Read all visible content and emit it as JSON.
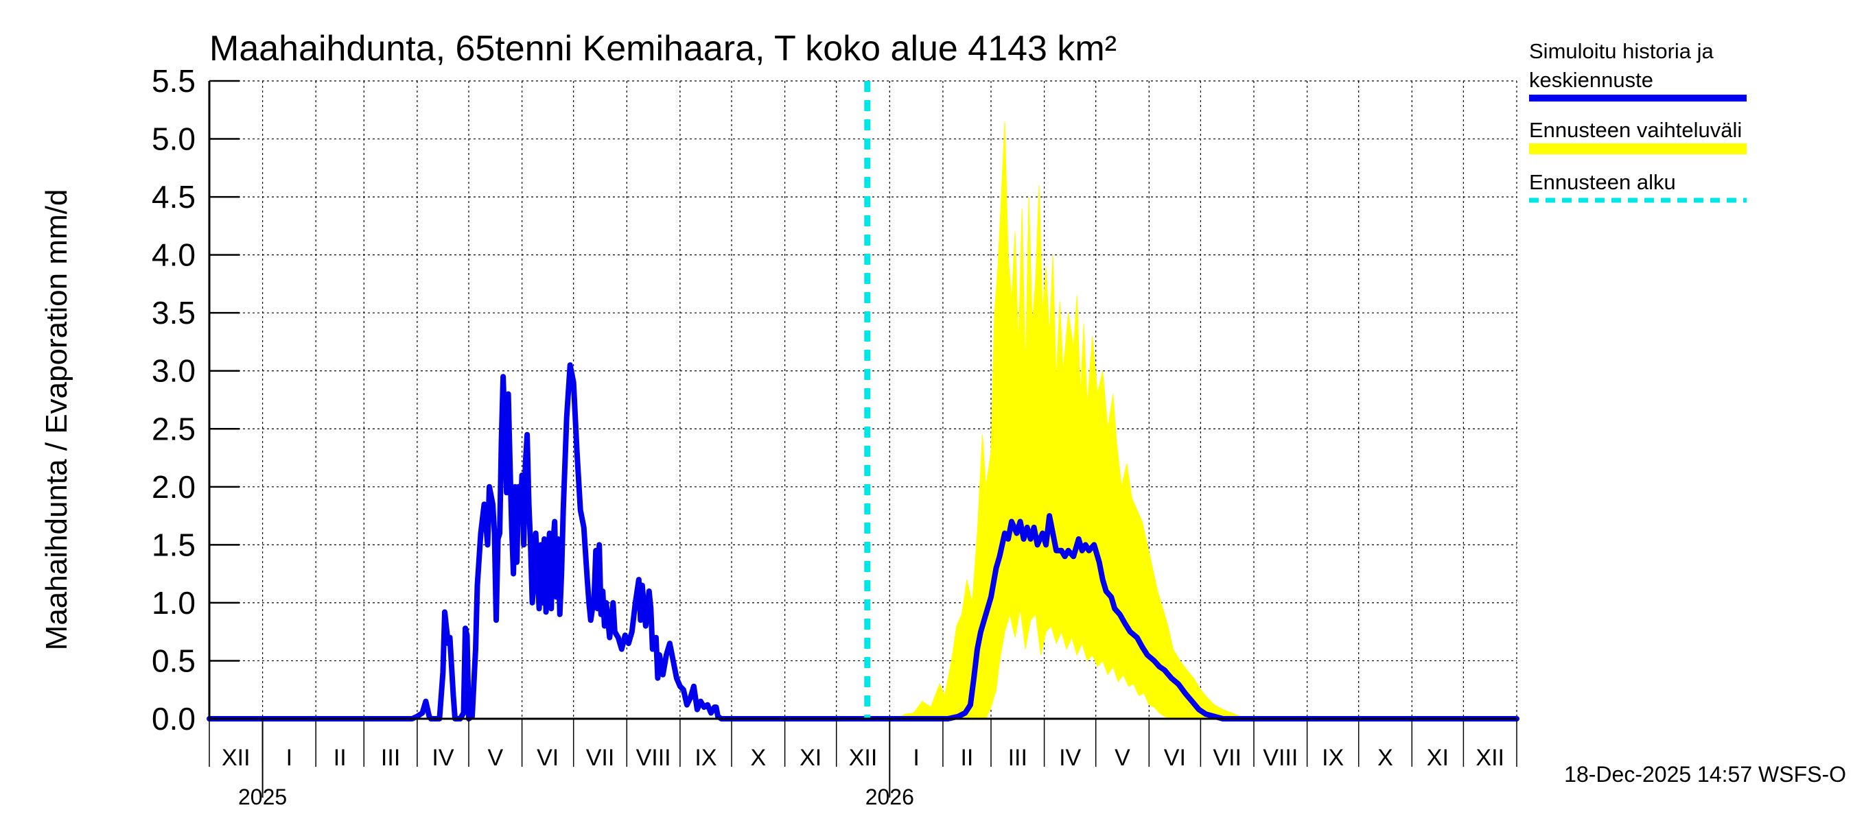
{
  "chart_data": {
    "type": "line",
    "title": "Maahaihdunta, 65tenni Kemihaara, T koko alue 4143 km²",
    "ylabel": "Maahaihdunta / Evaporation   mm/d",
    "xlabel": "",
    "ylim": [
      0,
      5.5
    ],
    "yticks": [
      "0.0",
      "0.5",
      "1.0",
      "1.5",
      "2.0",
      "2.5",
      "3.0",
      "3.5",
      "4.0",
      "4.5",
      "5.0",
      "5.5"
    ],
    "grid": true,
    "x_unit": "days since 2024-12-01",
    "xlim": [
      0,
      761
    ],
    "month_ticks": [
      0,
      31,
      62,
      90,
      121,
      151,
      182,
      212,
      243,
      274,
      304,
      335,
      365,
      396,
      427,
      455,
      486,
      516,
      547,
      577,
      608,
      639,
      669,
      700,
      730,
      761
    ],
    "month_labels": [
      "XII",
      "I",
      "II",
      "III",
      "IV",
      "V",
      "VI",
      "VII",
      "VIII",
      "IX",
      "X",
      "XI",
      "XII",
      "I",
      "II",
      "III",
      "IV",
      "V",
      "VI",
      "VII",
      "VIII",
      "IX",
      "X",
      "XI",
      "XII"
    ],
    "years": [
      {
        "label": "2025",
        "x": 31
      },
      {
        "label": "2026",
        "x": 396
      }
    ],
    "forecast_start_x": 383,
    "legend": {
      "placement": "right",
      "entries": [
        {
          "label_line1": "Simuloitu historia ja",
          "label_line2": "keskiennuste",
          "style": "solid",
          "color": "#0000ee"
        },
        {
          "label_line1": "Ennusteen vaihteluväli",
          "label_line2": "",
          "style": "band",
          "color": "#ffff00"
        },
        {
          "label_line1": "Ennusteen alku",
          "label_line2": "",
          "style": "dashed",
          "color": "#00e5e5"
        }
      ]
    },
    "series": [
      {
        "name": "Simuloitu historia ja keskiennuste",
        "color": "#0000ee",
        "points": [
          [
            0,
            0
          ],
          [
            118,
            0
          ],
          [
            121,
            0.02
          ],
          [
            124,
            0.05
          ],
          [
            126,
            0.15
          ],
          [
            128,
            0.02
          ],
          [
            129,
            0
          ],
          [
            134,
            0
          ],
          [
            136,
            0.4
          ],
          [
            137,
            0.92
          ],
          [
            139,
            0.65
          ],
          [
            140,
            0.7
          ],
          [
            142,
            0.2
          ],
          [
            143,
            0
          ],
          [
            146,
            0
          ],
          [
            148,
            0.05
          ],
          [
            149,
            0.78
          ],
          [
            150,
            0.72
          ],
          [
            151,
            0
          ],
          [
            153,
            0.02
          ],
          [
            155,
            0.6
          ],
          [
            156,
            1.15
          ],
          [
            158,
            1.6
          ],
          [
            160,
            1.85
          ],
          [
            162,
            1.5
          ],
          [
            163,
            2.0
          ],
          [
            165,
            1.85
          ],
          [
            166,
            1.6
          ],
          [
            167,
            0.85
          ],
          [
            168,
            1.55
          ],
          [
            169,
            1.6
          ],
          [
            170,
            2.4
          ],
          [
            171,
            2.95
          ],
          [
            172,
            2.5
          ],
          [
            173,
            1.95
          ],
          [
            174,
            2.8
          ],
          [
            175,
            2.2
          ],
          [
            176,
            1.65
          ],
          [
            177,
            1.25
          ],
          [
            178,
            2.0
          ],
          [
            179,
            1.35
          ],
          [
            180,
            2.0
          ],
          [
            181,
            1.7
          ],
          [
            182,
            2.1
          ],
          [
            183,
            1.5
          ],
          [
            184,
            2.2
          ],
          [
            185,
            2.45
          ],
          [
            186,
            1.85
          ],
          [
            187,
            1.5
          ],
          [
            188,
            1.0
          ],
          [
            189,
            1.2
          ],
          [
            190,
            1.6
          ],
          [
            191,
            1.3
          ],
          [
            192,
            0.95
          ],
          [
            193,
            1.5
          ],
          [
            194,
            1.0
          ],
          [
            195,
            1.55
          ],
          [
            196,
            0.92
          ],
          [
            197,
            1.3
          ],
          [
            198,
            1.6
          ],
          [
            199,
            0.95
          ],
          [
            200,
            1.5
          ],
          [
            201,
            1.7
          ],
          [
            202,
            1.05
          ],
          [
            203,
            1.55
          ],
          [
            204,
            0.9
          ],
          [
            205,
            1.25
          ],
          [
            206,
            1.8
          ],
          [
            208,
            2.6
          ],
          [
            210,
            3.05
          ],
          [
            212,
            2.9
          ],
          [
            214,
            2.3
          ],
          [
            216,
            1.8
          ],
          [
            218,
            1.65
          ],
          [
            220,
            1.2
          ],
          [
            221,
            1.0
          ],
          [
            222,
            0.85
          ],
          [
            224,
            1.05
          ],
          [
            225,
            1.45
          ],
          [
            226,
            0.95
          ],
          [
            227,
            1.5
          ],
          [
            228,
            0.9
          ],
          [
            229,
            1.1
          ],
          [
            230,
            0.8
          ],
          [
            231,
            1.0
          ],
          [
            233,
            0.7
          ],
          [
            235,
            1.0
          ],
          [
            236,
            0.75
          ],
          [
            238,
            0.7
          ],
          [
            240,
            0.6
          ],
          [
            242,
            0.72
          ],
          [
            244,
            0.65
          ],
          [
            246,
            0.75
          ],
          [
            248,
            1.0
          ],
          [
            250,
            1.2
          ],
          [
            251,
            0.85
          ],
          [
            252,
            1.15
          ],
          [
            254,
            0.8
          ],
          [
            256,
            1.1
          ],
          [
            257,
            0.95
          ],
          [
            258,
            0.6
          ],
          [
            260,
            0.7
          ],
          [
            261,
            0.35
          ],
          [
            262,
            0.55
          ],
          [
            264,
            0.38
          ],
          [
            266,
            0.55
          ],
          [
            268,
            0.65
          ],
          [
            270,
            0.5
          ],
          [
            272,
            0.35
          ],
          [
            274,
            0.28
          ],
          [
            276,
            0.25
          ],
          [
            278,
            0.12
          ],
          [
            280,
            0.18
          ],
          [
            282,
            0.28
          ],
          [
            284,
            0.08
          ],
          [
            286,
            0.15
          ],
          [
            288,
            0.1
          ],
          [
            290,
            0.12
          ],
          [
            292,
            0.05
          ],
          [
            294,
            0.1
          ],
          [
            295,
            0.1
          ],
          [
            296,
            0.02
          ],
          [
            298,
            0
          ],
          [
            420,
            0
          ],
          [
            430,
            0
          ],
          [
            436,
            0.02
          ],
          [
            440,
            0.05
          ],
          [
            443,
            0.12
          ],
          [
            445,
            0.35
          ],
          [
            447,
            0.6
          ],
          [
            449,
            0.75
          ],
          [
            452,
            0.9
          ],
          [
            455,
            1.05
          ],
          [
            458,
            1.3
          ],
          [
            460,
            1.4
          ],
          [
            463,
            1.6
          ],
          [
            465,
            1.55
          ],
          [
            467,
            1.7
          ],
          [
            470,
            1.6
          ],
          [
            472,
            1.7
          ],
          [
            474,
            1.55
          ],
          [
            476,
            1.65
          ],
          [
            478,
            1.55
          ],
          [
            480,
            1.65
          ],
          [
            482,
            1.5
          ],
          [
            485,
            1.6
          ],
          [
            487,
            1.5
          ],
          [
            489,
            1.75
          ],
          [
            491,
            1.6
          ],
          [
            493,
            1.45
          ],
          [
            496,
            1.45
          ],
          [
            498,
            1.4
          ],
          [
            500,
            1.45
          ],
          [
            503,
            1.4
          ],
          [
            506,
            1.55
          ],
          [
            508,
            1.45
          ],
          [
            510,
            1.5
          ],
          [
            512,
            1.45
          ],
          [
            515,
            1.5
          ],
          [
            518,
            1.35
          ],
          [
            520,
            1.2
          ],
          [
            522,
            1.1
          ],
          [
            525,
            1.05
          ],
          [
            527,
            0.95
          ],
          [
            530,
            0.9
          ],
          [
            533,
            0.82
          ],
          [
            536,
            0.75
          ],
          [
            540,
            0.7
          ],
          [
            543,
            0.62
          ],
          [
            546,
            0.55
          ],
          [
            550,
            0.5
          ],
          [
            553,
            0.45
          ],
          [
            556,
            0.42
          ],
          [
            560,
            0.35
          ],
          [
            564,
            0.3
          ],
          [
            568,
            0.22
          ],
          [
            572,
            0.15
          ],
          [
            576,
            0.08
          ],
          [
            580,
            0.04
          ],
          [
            585,
            0.02
          ],
          [
            590,
            0
          ],
          [
            761,
            0
          ]
        ]
      }
    ],
    "band": {
      "name": "Ennusteen vaihteluväli",
      "color": "#ffff00",
      "upper": [
        [
          383,
          0
        ],
        [
          400,
          0
        ],
        [
          405,
          0.04
        ],
        [
          410,
          0.05
        ],
        [
          415,
          0.15
        ],
        [
          420,
          0.1
        ],
        [
          425,
          0.3
        ],
        [
          428,
          0.2
        ],
        [
          432,
          0.5
        ],
        [
          435,
          0.8
        ],
        [
          438,
          0.9
        ],
        [
          441,
          1.2
        ],
        [
          444,
          1.0
        ],
        [
          447,
          1.6
        ],
        [
          450,
          2.45
        ],
        [
          452,
          2.0
        ],
        [
          455,
          2.3
        ],
        [
          457,
          3.5
        ],
        [
          459,
          3.9
        ],
        [
          461,
          4.5
        ],
        [
          463,
          5.15
        ],
        [
          465,
          4.0
        ],
        [
          467,
          3.6
        ],
        [
          469,
          4.2
        ],
        [
          471,
          3.2
        ],
        [
          473,
          4.4
        ],
        [
          475,
          3.0
        ],
        [
          477,
          4.5
        ],
        [
          479,
          3.4
        ],
        [
          481,
          3.8
        ],
        [
          483,
          4.6
        ],
        [
          485,
          3.5
        ],
        [
          487,
          3.9
        ],
        [
          489,
          3.3
        ],
        [
          491,
          4.0
        ],
        [
          493,
          2.9
        ],
        [
          495,
          3.6
        ],
        [
          497,
          3.0
        ],
        [
          500,
          3.5
        ],
        [
          503,
          3.2
        ],
        [
          505,
          3.65
        ],
        [
          507,
          2.8
        ],
        [
          509,
          3.4
        ],
        [
          511,
          2.7
        ],
        [
          514,
          3.3
        ],
        [
          517,
          2.8
        ],
        [
          520,
          3.0
        ],
        [
          523,
          2.5
        ],
        [
          526,
          2.8
        ],
        [
          528,
          2.4
        ],
        [
          531,
          2.0
        ],
        [
          534,
          2.2
        ],
        [
          537,
          1.9
        ],
        [
          540,
          1.8
        ],
        [
          543,
          1.7
        ],
        [
          546,
          1.5
        ],
        [
          549,
          1.3
        ],
        [
          552,
          1.1
        ],
        [
          555,
          0.95
        ],
        [
          558,
          0.8
        ],
        [
          561,
          0.6
        ],
        [
          565,
          0.5
        ],
        [
          569,
          0.42
        ],
        [
          573,
          0.35
        ],
        [
          577,
          0.25
        ],
        [
          581,
          0.18
        ],
        [
          585,
          0.12
        ],
        [
          590,
          0.08
        ],
        [
          595,
          0.05
        ],
        [
          600,
          0.02
        ],
        [
          610,
          0
        ]
      ],
      "lower": [
        [
          383,
          0
        ],
        [
          452,
          0
        ],
        [
          455,
          0.1
        ],
        [
          458,
          0.25
        ],
        [
          460,
          0.5
        ],
        [
          463,
          0.75
        ],
        [
          466,
          0.9
        ],
        [
          469,
          0.7
        ],
        [
          472,
          0.95
        ],
        [
          475,
          0.6
        ],
        [
          478,
          0.85
        ],
        [
          481,
          0.9
        ],
        [
          484,
          0.55
        ],
        [
          487,
          0.75
        ],
        [
          490,
          0.8
        ],
        [
          493,
          0.65
        ],
        [
          496,
          0.75
        ],
        [
          499,
          0.6
        ],
        [
          502,
          0.7
        ],
        [
          505,
          0.55
        ],
        [
          508,
          0.65
        ],
        [
          511,
          0.5
        ],
        [
          514,
          0.55
        ],
        [
          517,
          0.45
        ],
        [
          520,
          0.5
        ],
        [
          523,
          0.38
        ],
        [
          526,
          0.45
        ],
        [
          529,
          0.32
        ],
        [
          532,
          0.38
        ],
        [
          535,
          0.28
        ],
        [
          538,
          0.3
        ],
        [
          541,
          0.2
        ],
        [
          544,
          0.22
        ],
        [
          547,
          0.12
        ],
        [
          550,
          0.1
        ],
        [
          553,
          0.05
        ],
        [
          556,
          0.02
        ],
        [
          560,
          0
        ],
        [
          610,
          0
        ]
      ]
    }
  },
  "footer": {
    "timestamp": "18-Dec-2025 14:57 WSFS-O"
  }
}
